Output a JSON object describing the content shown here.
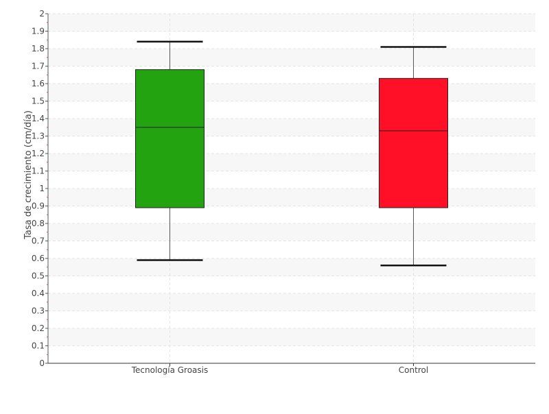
{
  "chart_data": {
    "type": "boxplot",
    "title": "",
    "xlabel": "",
    "ylabel": "Tasa de crecimiento (cm/día)",
    "ylim": [
      0,
      2
    ],
    "y_ticks": [
      "0",
      "0.1",
      "0.2",
      "0.3",
      "0.4",
      "0.5",
      "0.6",
      "0.7",
      "0.8",
      "0.9",
      "1",
      "1.1",
      "1.2",
      "1.3",
      "1.4",
      "1.5",
      "1.6",
      "1.7",
      "1.8",
      "1.9",
      "2"
    ],
    "grid": true,
    "categories": [
      "Tecnología Groasis",
      "Control"
    ],
    "boxes": [
      {
        "category": "Tecnología Groasis",
        "whisker_low": 0.59,
        "q1": 0.89,
        "median": 1.35,
        "q3": 1.68,
        "whisker_high": 1.84,
        "color": "#22a30f"
      },
      {
        "category": "Control",
        "whisker_low": 0.56,
        "q1": 0.89,
        "median": 1.33,
        "q3": 1.63,
        "whisker_high": 1.81,
        "color": "#ff1027"
      }
    ]
  }
}
